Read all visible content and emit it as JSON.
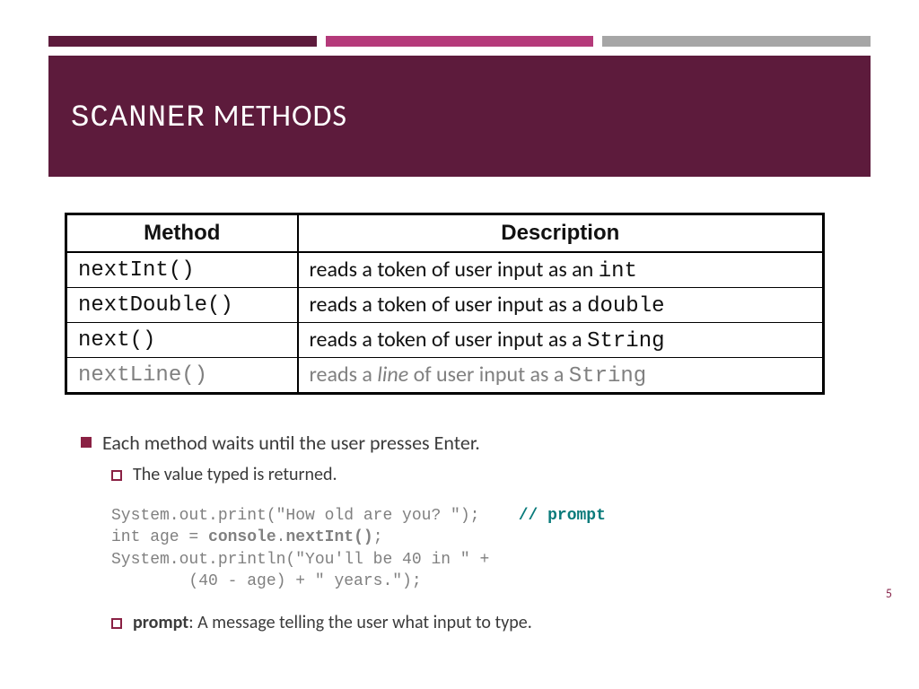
{
  "colors": {
    "primary": "#5d1b3c",
    "accent_mid": "#b43a7a",
    "accent_gray": "#a6a6a6",
    "header_bg": "#5d1b3c",
    "table_border": "#000000",
    "dim_text": "#808080",
    "code_text": "#808080",
    "comment": "#0a7b7b",
    "bullet_accent": "#8a2144",
    "pagenum": "#8a2a4f",
    "body_text": "#3b3b3b",
    "white": "#ffffff"
  },
  "topbars": [
    "#5d1b3c",
    "#b43a7a",
    "#a6a6a6"
  ],
  "title": {
    "mono": "SCANNER",
    "rest": " METHODS"
  },
  "table": {
    "columns": [
      "Method",
      "Description"
    ],
    "rows": [
      {
        "method": "nextInt()",
        "desc_pre": "reads a token of user input as an ",
        "desc_mono": "int",
        "dim": false
      },
      {
        "method": "nextDouble()",
        "desc_pre": "reads a token of user input as a ",
        "desc_mono": "double",
        "dim": false
      },
      {
        "method": "next()",
        "desc_pre": "reads a token of user input as a ",
        "desc_mono": "String",
        "dim": false
      },
      {
        "method": "nextLine()",
        "desc_pre": "reads a ",
        "desc_it": "line",
        "desc_mid": " of user input as a ",
        "desc_mono": "String",
        "dim": true
      }
    ]
  },
  "bullets": {
    "b1": "Each method waits until the user presses Enter.",
    "b2": "The value typed is returned.",
    "b3_term": "prompt",
    "b3_rest": ": A message telling the user what input to type."
  },
  "code": {
    "l1a": "System.out.print(\"How old are you? \");    ",
    "l1b": "// prompt",
    "l2a": "int age = ",
    "l2b": "console",
    "l2c": ".",
    "l2d": "nextInt()",
    "l2e": ";",
    "l3": "System.out.println(\"You'll be 40 in \" +",
    "l4": "        (40 - age) + \" years.\");"
  },
  "page_number": "5"
}
